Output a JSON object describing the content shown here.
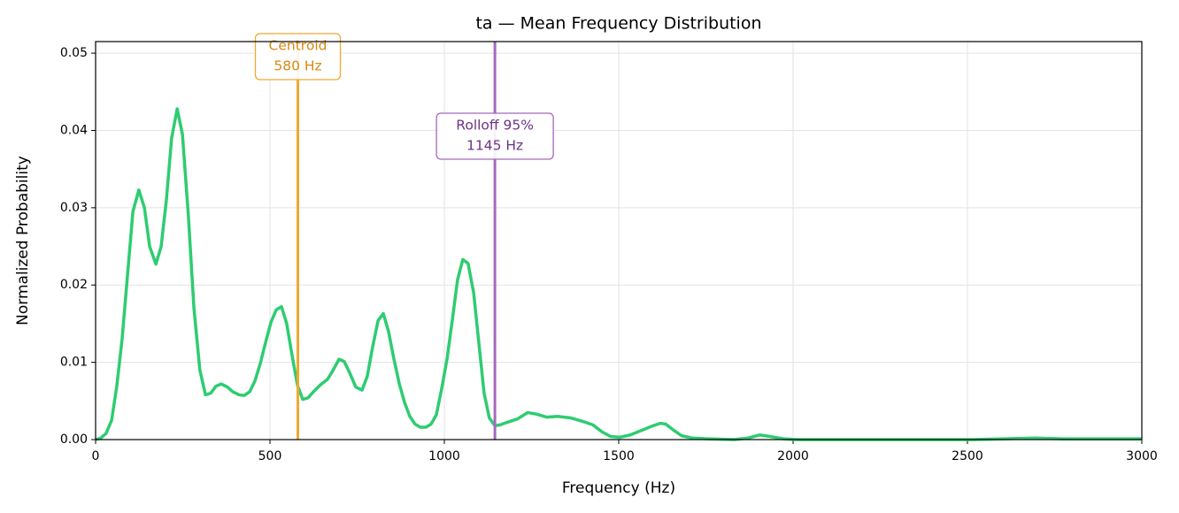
{
  "chart_data": {
    "type": "line",
    "title": "ta  —  Mean Frequency Distribution",
    "xlabel": "Frequency (Hz)",
    "ylabel": "Normalized Probability",
    "x": [
      0,
      15,
      30,
      46,
      61,
      76,
      91,
      107,
      124,
      140,
      155,
      173,
      188,
      203,
      218,
      234,
      249,
      266,
      282,
      299,
      315,
      330,
      345,
      360,
      378,
      393,
      411,
      426,
      442,
      457,
      472,
      487,
      503,
      518,
      533,
      548,
      563,
      579,
      594,
      609,
      627,
      645,
      665,
      680,
      698,
      713,
      728,
      746,
      764,
      779,
      794,
      810,
      825,
      840,
      855,
      871,
      886,
      901,
      916,
      931,
      947,
      962,
      977,
      992,
      1008,
      1023,
      1038,
      1053,
      1068,
      1084,
      1099,
      1114,
      1129,
      1145,
      1160,
      1178,
      1211,
      1239,
      1264,
      1294,
      1325,
      1363,
      1401,
      1426,
      1452,
      1477,
      1503,
      1533,
      1566,
      1599,
      1619,
      1635,
      1655,
      1680,
      1711,
      1756,
      1832,
      1871,
      1904,
      1934,
      1972,
      2010,
      2264,
      2518,
      2695,
      2772,
      3000
    ],
    "values": [
      0,
      0.0002,
      0.0008,
      0.0025,
      0.007,
      0.013,
      0.021,
      0.0295,
      0.0323,
      0.03,
      0.025,
      0.0227,
      0.025,
      0.031,
      0.039,
      0.0428,
      0.0395,
      0.029,
      0.017,
      0.009,
      0.0058,
      0.006,
      0.0069,
      0.0072,
      0.0068,
      0.0062,
      0.0058,
      0.0057,
      0.0062,
      0.0076,
      0.0098,
      0.0125,
      0.0152,
      0.0168,
      0.0172,
      0.015,
      0.011,
      0.007,
      0.0052,
      0.0054,
      0.0063,
      0.0071,
      0.0078,
      0.0089,
      0.0104,
      0.0101,
      0.0087,
      0.0068,
      0.0064,
      0.0082,
      0.0119,
      0.0154,
      0.0163,
      0.014,
      0.0105,
      0.0072,
      0.0048,
      0.003,
      0.002,
      0.0016,
      0.0016,
      0.002,
      0.0032,
      0.0065,
      0.0105,
      0.0155,
      0.0207,
      0.0233,
      0.0228,
      0.019,
      0.0125,
      0.006,
      0.0028,
      0.0018,
      0.0019,
      0.0022,
      0.0027,
      0.0035,
      0.0033,
      0.0029,
      0.003,
      0.0028,
      0.0023,
      0.0019,
      0.001,
      0.0004,
      0.0003,
      0.0006,
      0.0012,
      0.0018,
      0.0021,
      0.002,
      0.0013,
      0.0005,
      0.0002,
      0.0001,
      0,
      0.0002,
      0.0006,
      0.0004,
      0.0001,
      0,
      0,
      0,
      0.0002,
      0.0001,
      0.0001
    ],
    "color": "#2ecc71",
    "xlim": [
      0,
      3000
    ],
    "xticks": [
      0,
      500,
      1000,
      1500,
      2000,
      2500,
      3000
    ],
    "ylim": [
      0,
      0.0515
    ],
    "yticks": [
      {
        "value": 0,
        "label": "0.00"
      },
      {
        "value": 0.01,
        "label": "0.01"
      },
      {
        "value": 0.02,
        "label": "0.02"
      },
      {
        "value": 0.03,
        "label": "0.03"
      },
      {
        "value": 0.04,
        "label": "0.04"
      },
      {
        "value": 0.05,
        "label": "0.05"
      }
    ],
    "grid": true,
    "annotations": [
      {
        "x": 580,
        "label": [
          "Centroid",
          "580 Hz"
        ],
        "color": "#f0a830",
        "text_color": "#d68910"
      },
      {
        "x": 1145,
        "label": [
          "Rolloff 95%",
          "1145 Hz"
        ],
        "color": "#a569bd",
        "text_color": "#6c3483"
      }
    ]
  }
}
